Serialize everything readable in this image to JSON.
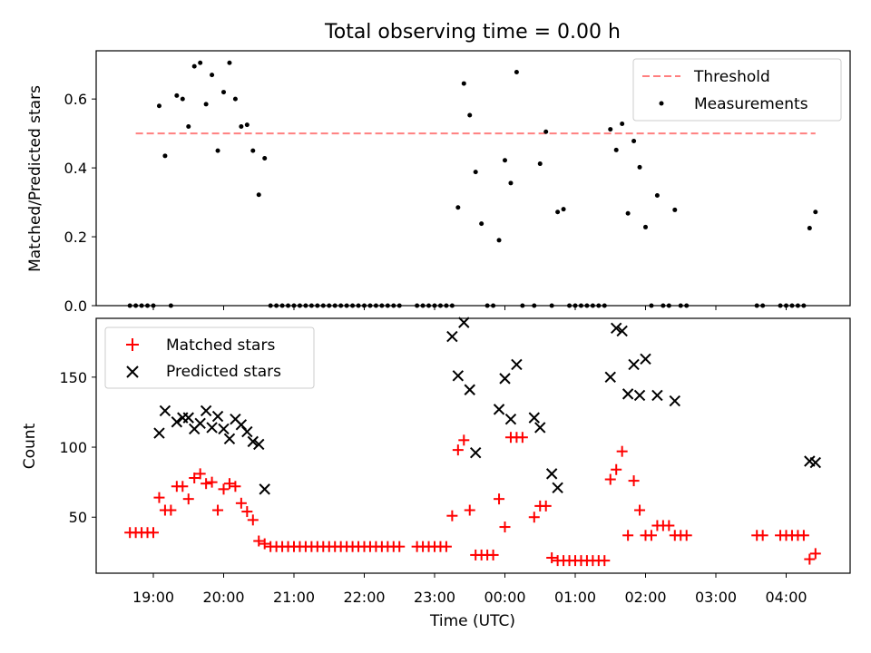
{
  "chart_data": [
    {
      "type": "scatter",
      "title": "Total observing time = 0.00 h",
      "xlabel": "",
      "ylabel": "Matched/Predicted stars",
      "ylim": [
        0,
        0.74
      ],
      "yticks": [
        "0.0",
        "0.2",
        "0.4",
        "0.6"
      ],
      "legend_position": "top-right",
      "threshold": {
        "name": "Threshold",
        "value": 0.5,
        "x_range": [
          "18:45",
          "04:25"
        ],
        "color": "#ff7f7f",
        "style": "dashed"
      },
      "series": [
        {
          "name": "Measurements",
          "color": "#000000",
          "marker": "dot",
          "points": [
            [
              "18:40",
              0
            ],
            [
              "18:45",
              0
            ],
            [
              "18:50",
              0
            ],
            [
              "18:55",
              0
            ],
            [
              "19:00",
              0
            ],
            [
              "19:05",
              0.58
            ],
            [
              "19:10",
              0.435
            ],
            [
              "19:15",
              0
            ],
            [
              "19:20",
              0.61
            ],
            [
              "19:25",
              0.6
            ],
            [
              "19:30",
              0.52
            ],
            [
              "19:35",
              0.695
            ],
            [
              "19:40",
              0.705
            ],
            [
              "19:45",
              0.585
            ],
            [
              "19:50",
              0.67
            ],
            [
              "19:55",
              0.45
            ],
            [
              "20:00",
              0.62
            ],
            [
              "20:05",
              0.705
            ],
            [
              "20:10",
              0.6
            ],
            [
              "20:15",
              0.52
            ],
            [
              "20:20",
              0.525
            ],
            [
              "20:25",
              0.45
            ],
            [
              "20:30",
              0.322
            ],
            [
              "20:35",
              0.428
            ],
            [
              "20:40",
              0
            ],
            [
              "20:45",
              0
            ],
            [
              "20:50",
              0
            ],
            [
              "20:55",
              0
            ],
            [
              "21:00",
              0
            ],
            [
              "21:05",
              0
            ],
            [
              "21:10",
              0
            ],
            [
              "21:15",
              0
            ],
            [
              "21:20",
              0
            ],
            [
              "21:25",
              0
            ],
            [
              "21:30",
              0
            ],
            [
              "21:35",
              0
            ],
            [
              "21:40",
              0
            ],
            [
              "21:45",
              0
            ],
            [
              "21:50",
              0
            ],
            [
              "21:55",
              0
            ],
            [
              "22:00",
              0
            ],
            [
              "22:05",
              0
            ],
            [
              "22:10",
              0
            ],
            [
              "22:15",
              0
            ],
            [
              "22:20",
              0
            ],
            [
              "22:25",
              0
            ],
            [
              "22:30",
              0
            ],
            [
              "22:45",
              0
            ],
            [
              "22:50",
              0
            ],
            [
              "22:55",
              0
            ],
            [
              "23:00",
              0
            ],
            [
              "23:05",
              0
            ],
            [
              "23:10",
              0
            ],
            [
              "23:15",
              0
            ],
            [
              "23:20",
              0.285
            ],
            [
              "23:25",
              0.645
            ],
            [
              "23:30",
              0.553
            ],
            [
              "23:35",
              0.388
            ],
            [
              "23:40",
              0.238
            ],
            [
              "23:45",
              0
            ],
            [
              "23:50",
              0
            ],
            [
              "23:55",
              0.19
            ],
            [
              "00:00",
              0.422
            ],
            [
              "00:05",
              0.356
            ],
            [
              "00:10",
              0.678
            ],
            [
              "00:15",
              0
            ],
            [
              "00:25",
              0
            ],
            [
              "00:30",
              0.412
            ],
            [
              "00:35",
              0.505
            ],
            [
              "00:40",
              0
            ],
            [
              "00:45",
              0.272
            ],
            [
              "00:50",
              0.28
            ],
            [
              "00:55",
              0
            ],
            [
              "01:00",
              0
            ],
            [
              "01:05",
              0
            ],
            [
              "01:10",
              0
            ],
            [
              "01:15",
              0
            ],
            [
              "01:20",
              0
            ],
            [
              "01:25",
              0
            ],
            [
              "01:30",
              0.512
            ],
            [
              "01:35",
              0.452
            ],
            [
              "01:40",
              0.528
            ],
            [
              "01:45",
              0.268
            ],
            [
              "01:50",
              0.478
            ],
            [
              "01:55",
              0.402
            ],
            [
              "02:00",
              0.228
            ],
            [
              "02:05",
              0
            ],
            [
              "02:10",
              0.32
            ],
            [
              "02:15",
              0
            ],
            [
              "02:20",
              0
            ],
            [
              "02:25",
              0.278
            ],
            [
              "02:30",
              0
            ],
            [
              "02:35",
              0
            ],
            [
              "03:35",
              0
            ],
            [
              "03:40",
              0
            ],
            [
              "03:55",
              0
            ],
            [
              "04:00",
              0
            ],
            [
              "04:05",
              0
            ],
            [
              "04:10",
              0
            ],
            [
              "04:15",
              0
            ],
            [
              "04:20",
              0.225
            ],
            [
              "04:25",
              0.272
            ]
          ]
        }
      ]
    },
    {
      "type": "scatter",
      "title": "",
      "xlabel": "Time (UTC)",
      "ylabel": "Count",
      "ylim": [
        10,
        192
      ],
      "yticks": [
        "50",
        "100",
        "150"
      ],
      "xticks": [
        "19:00",
        "20:00",
        "21:00",
        "22:00",
        "23:00",
        "00:00",
        "01:00",
        "02:00",
        "03:00",
        "04:00"
      ],
      "legend_position": "top-left",
      "series": [
        {
          "name": "Matched stars",
          "color": "#ff0000",
          "marker": "plus",
          "points": [
            [
              "18:40",
              39
            ],
            [
              "18:45",
              39
            ],
            [
              "18:50",
              39
            ],
            [
              "18:55",
              39
            ],
            [
              "19:00",
              39
            ],
            [
              "19:05",
              64
            ],
            [
              "19:10",
              55
            ],
            [
              "19:15",
              55
            ],
            [
              "19:20",
              72
            ],
            [
              "19:25",
              72
            ],
            [
              "19:30",
              63
            ],
            [
              "19:35",
              78
            ],
            [
              "19:40",
              81
            ],
            [
              "19:45",
              74
            ],
            [
              "19:50",
              75
            ],
            [
              "19:55",
              55
            ],
            [
              "20:00",
              70
            ],
            [
              "20:05",
              74
            ],
            [
              "20:10",
              72
            ],
            [
              "20:15",
              60
            ],
            [
              "20:20",
              54
            ],
            [
              "20:25",
              48
            ],
            [
              "20:30",
              33
            ],
            [
              "20:35",
              31
            ],
            [
              "20:40",
              29
            ],
            [
              "20:45",
              29
            ],
            [
              "20:50",
              29
            ],
            [
              "20:55",
              29
            ],
            [
              "21:00",
              29
            ],
            [
              "21:05",
              29
            ],
            [
              "21:10",
              29
            ],
            [
              "21:15",
              29
            ],
            [
              "21:20",
              29
            ],
            [
              "21:25",
              29
            ],
            [
              "21:30",
              29
            ],
            [
              "21:35",
              29
            ],
            [
              "21:40",
              29
            ],
            [
              "21:45",
              29
            ],
            [
              "21:50",
              29
            ],
            [
              "21:55",
              29
            ],
            [
              "22:00",
              29
            ],
            [
              "22:05",
              29
            ],
            [
              "22:10",
              29
            ],
            [
              "22:15",
              29
            ],
            [
              "22:20",
              29
            ],
            [
              "22:25",
              29
            ],
            [
              "22:30",
              29
            ],
            [
              "22:45",
              29
            ],
            [
              "22:50",
              29
            ],
            [
              "22:55",
              29
            ],
            [
              "23:00",
              29
            ],
            [
              "23:05",
              29
            ],
            [
              "23:10",
              29
            ],
            [
              "23:15",
              51
            ],
            [
              "23:20",
              98
            ],
            [
              "23:25",
              105
            ],
            [
              "23:30",
              55
            ],
            [
              "23:35",
              23
            ],
            [
              "23:40",
              23
            ],
            [
              "23:45",
              23
            ],
            [
              "23:50",
              23
            ],
            [
              "23:55",
              63
            ],
            [
              "00:00",
              43
            ],
            [
              "00:05",
              107
            ],
            [
              "00:10",
              107
            ],
            [
              "00:15",
              107
            ],
            [
              "00:25",
              50
            ],
            [
              "00:30",
              58
            ],
            [
              "00:35",
              58
            ],
            [
              "00:40",
              21
            ],
            [
              "00:45",
              19
            ],
            [
              "00:50",
              19
            ],
            [
              "00:55",
              19
            ],
            [
              "01:00",
              19
            ],
            [
              "01:05",
              19
            ],
            [
              "01:10",
              19
            ],
            [
              "01:15",
              19
            ],
            [
              "01:20",
              19
            ],
            [
              "01:25",
              19
            ],
            [
              "01:30",
              77
            ],
            [
              "01:35",
              84
            ],
            [
              "01:40",
              97
            ],
            [
              "01:45",
              37
            ],
            [
              "01:50",
              76
            ],
            [
              "01:55",
              55
            ],
            [
              "02:00",
              37
            ],
            [
              "02:05",
              37
            ],
            [
              "02:10",
              44
            ],
            [
              "02:15",
              44
            ],
            [
              "02:20",
              44
            ],
            [
              "02:25",
              37
            ],
            [
              "02:30",
              37
            ],
            [
              "02:35",
              37
            ],
            [
              "03:35",
              37
            ],
            [
              "03:40",
              37
            ],
            [
              "03:55",
              37
            ],
            [
              "04:00",
              37
            ],
            [
              "04:05",
              37
            ],
            [
              "04:10",
              37
            ],
            [
              "04:15",
              37
            ],
            [
              "04:20",
              20
            ],
            [
              "04:25",
              24
            ]
          ]
        },
        {
          "name": "Predicted stars",
          "color": "#000000",
          "marker": "x",
          "points": [
            [
              "19:05",
              110
            ],
            [
              "19:10",
              126
            ],
            [
              "19:20",
              118
            ],
            [
              "19:25",
              121
            ],
            [
              "19:30",
              121
            ],
            [
              "19:35",
              113
            ],
            [
              "19:40",
              117
            ],
            [
              "19:45",
              126
            ],
            [
              "19:50",
              114
            ],
            [
              "19:55",
              122
            ],
            [
              "20:00",
              113
            ],
            [
              "20:05",
              106
            ],
            [
              "20:10",
              120
            ],
            [
              "20:15",
              116
            ],
            [
              "20:20",
              111
            ],
            [
              "20:25",
              104
            ],
            [
              "20:30",
              102
            ],
            [
              "20:35",
              70
            ],
            [
              "23:15",
              179
            ],
            [
              "23:20",
              151
            ],
            [
              "23:25",
              189
            ],
            [
              "23:30",
              141
            ],
            [
              "23:35",
              96
            ],
            [
              "23:55",
              127
            ],
            [
              "00:00",
              149
            ],
            [
              "00:05",
              120
            ],
            [
              "00:10",
              159
            ],
            [
              "00:25",
              121
            ],
            [
              "00:30",
              114
            ],
            [
              "00:40",
              81
            ],
            [
              "00:45",
              71
            ],
            [
              "01:30",
              150
            ],
            [
              "01:35",
              185
            ],
            [
              "01:40",
              183
            ],
            [
              "01:45",
              138
            ],
            [
              "01:50",
              159
            ],
            [
              "01:55",
              137
            ],
            [
              "02:00",
              163
            ],
            [
              "02:10",
              137
            ],
            [
              "02:25",
              133
            ],
            [
              "04:20",
              90
            ],
            [
              "04:25",
              89
            ]
          ]
        }
      ]
    }
  ]
}
